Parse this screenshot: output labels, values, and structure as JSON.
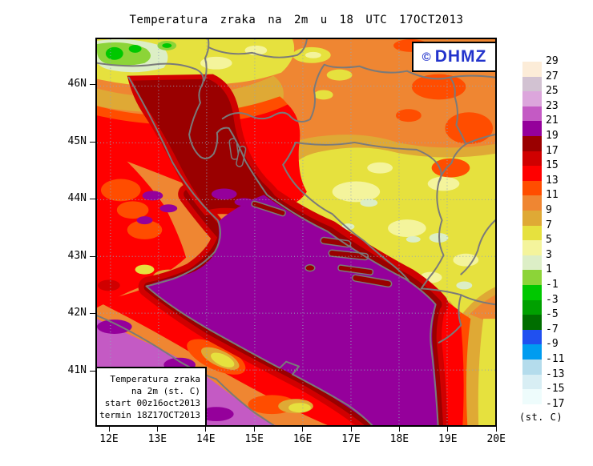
{
  "title": "Temperatura zraka na 2m u 18 UTC 17OCT2013",
  "badge": {
    "copyright": "©",
    "org": "DHMZ",
    "color": "#2233cc"
  },
  "infobox": {
    "lines": [
      "Temperatura zraka",
      "na 2m (st. C)",
      "start 00z16oct2013",
      "termin 18Z17OCT2013"
    ]
  },
  "axes": {
    "x_ticks": [
      "12E",
      "13E",
      "14E",
      "15E",
      "16E",
      "17E",
      "18E",
      "19E",
      "20E"
    ],
    "y_ticks": [
      "46N",
      "45N",
      "44N",
      "43N",
      "42N",
      "41N"
    ]
  },
  "legend": {
    "unit_label": "(st. C)",
    "levels": [
      "29",
      "27",
      "25",
      "23",
      "21",
      "19",
      "17",
      "15",
      "13",
      "11",
      "9",
      "7",
      "5",
      "3",
      "1",
      "-1",
      "-3",
      "-5",
      "-7",
      "-9",
      "-11",
      "-13",
      "-15",
      "-17"
    ],
    "colors": [
      "#fcecd8",
      "#d2c2d2",
      "#dca6dc",
      "#c45ac4",
      "#95009b",
      "#9a0000",
      "#d00000",
      "#ff0000",
      "#ff4d00",
      "#ef8632",
      "#dfa935",
      "#e6e13e",
      "#f4f49c",
      "#dceec6",
      "#8cd438",
      "#00c800",
      "#00a000",
      "#006e00",
      "#2050f0",
      "#009cf0",
      "#b4dcec",
      "#d8eef4",
      "#eefcfc"
    ]
  },
  "map": {
    "grid_color": "#92a6bc",
    "border_color": "#7a7a7a",
    "frame_color": "#000000",
    "features": {
      "adriatic_sea": "#95009b",
      "north_adriatic_coastal_water": "#9a0000",
      "tyrrhenian_sea": "#c45ac4",
      "inland_lowlands": "#ef8632",
      "dinaric_highlands": "#e6e13e",
      "alps_cold_spots": "#8cd438"
    }
  }
}
